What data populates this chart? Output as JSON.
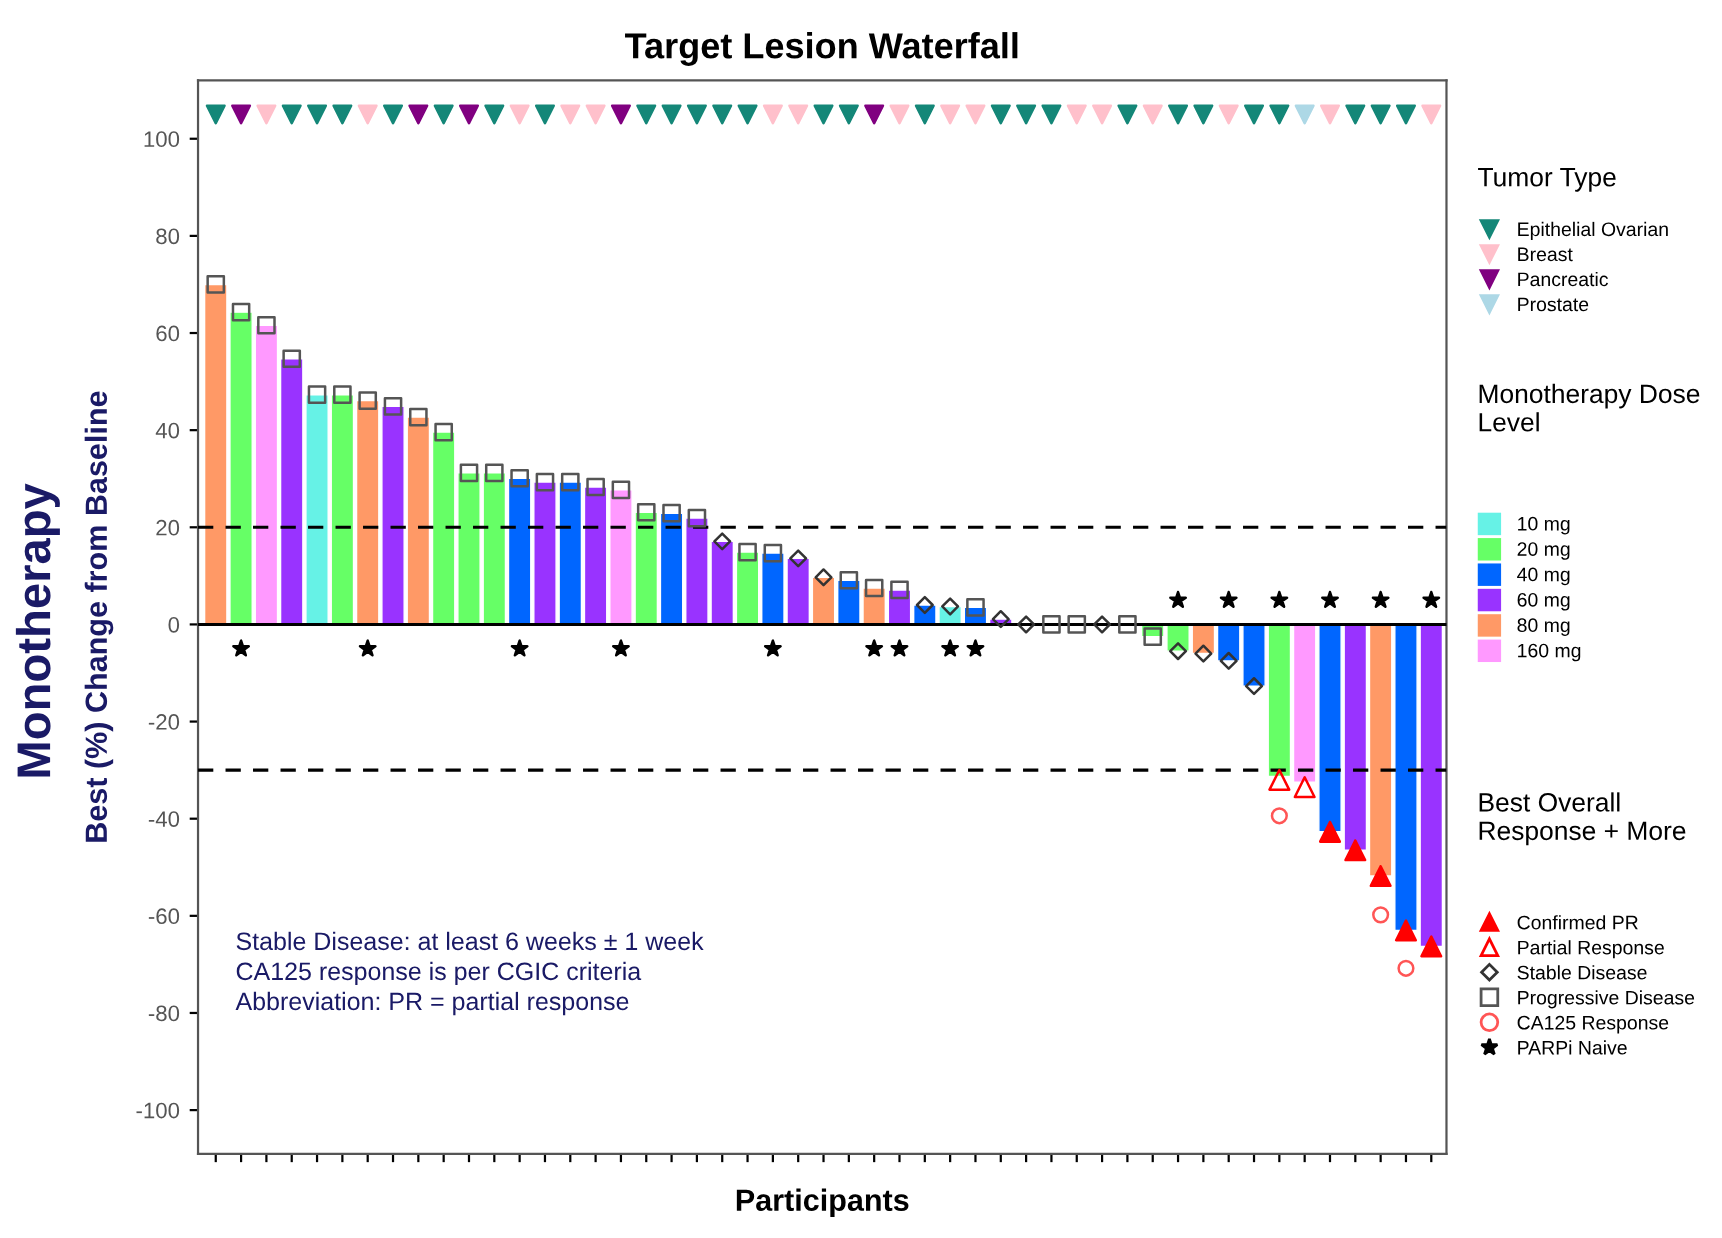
{
  "chart_data": {
    "type": "bar",
    "title": "Target Lesion Waterfall",
    "xlabel": "Participants",
    "ylabel": "Best (%) Change from Baseline",
    "annotations": [
      "Monotherapy",
      "Stable Disease: at least 6 weeks ± 1 week",
      "CA125 response is per CGIC criteria",
      "Abbreviation: PR = partial response"
    ],
    "legend_title": [
      "Tumor Type",
      "Monotherapy Dose Level",
      "Best Overall Response + More"
    ],
    "legend": "right",
    "categories": [
      null,
      null,
      null,
      null,
      null,
      null,
      null,
      null,
      null,
      null,
      null,
      null,
      null,
      null,
      null,
      null,
      null,
      null,
      null,
      null,
      null,
      null,
      null,
      null,
      null,
      null,
      null,
      null,
      null,
      null,
      null,
      null,
      null,
      null,
      null,
      null,
      null,
      null,
      null,
      null,
      null,
      null,
      null,
      null,
      null,
      null,
      null,
      null,
      null
    ],
    "ylim": [
      -109,
      112
    ],
    "yticks": [
      -100,
      -80,
      -60,
      -40,
      -20,
      0,
      20,
      40,
      60,
      80,
      100
    ],
    "grid": false,
    "ref_lines": [
      {
        "axis": "y",
        "value": 20,
        "line_style": "dashed",
        "color": "#000000"
      },
      {
        "axis": "y",
        "value": -30,
        "line_style": "dashed",
        "color": "#000000"
      },
      {
        "axis": "y",
        "value": 0,
        "line_style": "solid",
        "color": "#000000"
      }
    ],
    "series": [
      {
        "name": "Epithelial Ovarian",
        "type": "scatter",
        "marker": "triangle_down",
        "color": "#148778",
        "values": [
          105,
          null,
          null,
          105,
          105,
          105,
          null,
          105,
          null,
          105,
          null,
          105,
          null,
          105,
          null,
          null,
          null,
          105,
          105,
          105,
          105,
          105,
          null,
          null,
          105,
          105,
          null,
          null,
          105,
          null,
          null,
          105,
          105,
          105,
          null,
          null,
          105,
          null,
          105,
          105,
          null,
          105,
          105,
          null,
          null,
          105,
          105,
          105,
          null
        ]
      },
      {
        "name": "Breast",
        "type": "scatter",
        "marker": "triangle_down",
        "color": "#ffc0cb",
        "values": [
          null,
          null,
          105,
          null,
          null,
          null,
          105,
          null,
          null,
          null,
          null,
          null,
          105,
          null,
          105,
          105,
          null,
          null,
          null,
          null,
          null,
          null,
          105,
          105,
          null,
          null,
          null,
          105,
          null,
          105,
          105,
          null,
          null,
          null,
          105,
          105,
          null,
          105,
          null,
          null,
          105,
          null,
          null,
          null,
          105,
          null,
          null,
          null,
          105
        ]
      },
      {
        "name": "Pancreatic",
        "type": "scatter",
        "marker": "triangle_down",
        "color": "#800080",
        "values": [
          null,
          105,
          null,
          null,
          null,
          null,
          null,
          null,
          105,
          null,
          105,
          null,
          null,
          null,
          null,
          null,
          105,
          null,
          null,
          null,
          null,
          null,
          null,
          null,
          null,
          null,
          105,
          null,
          null,
          null,
          null,
          null,
          null,
          null,
          null,
          null,
          null,
          null,
          null,
          null,
          null,
          null,
          null,
          null,
          null,
          null,
          null,
          null,
          null
        ]
      },
      {
        "name": "Prostate",
        "type": "scatter",
        "marker": "triangle_down",
        "color": "#add8e6",
        "values": [
          null,
          null,
          null,
          null,
          null,
          null,
          null,
          null,
          null,
          null,
          null,
          null,
          null,
          null,
          null,
          null,
          null,
          null,
          null,
          null,
          null,
          null,
          null,
          null,
          null,
          null,
          null,
          null,
          null,
          null,
          null,
          null,
          null,
          null,
          null,
          null,
          null,
          null,
          null,
          null,
          null,
          null,
          null,
          105,
          null,
          null,
          null,
          null,
          null
        ]
      },
      {
        "name": "10 mg",
        "color": "#66f2e6",
        "values": [
          null,
          null,
          null,
          null,
          47.3,
          null,
          null,
          null,
          null,
          null,
          null,
          null,
          null,
          null,
          null,
          null,
          null,
          null,
          null,
          null,
          null,
          null,
          null,
          null,
          null,
          null,
          null,
          null,
          null,
          3.7,
          null,
          null,
          null,
          null,
          null,
          null,
          null,
          null,
          null,
          null,
          null,
          null,
          null,
          null,
          null,
          null,
          null,
          null,
          null
        ]
      },
      {
        "name": "20 mg",
        "color": "#66ff66",
        "values": [
          null,
          64.3,
          null,
          null,
          null,
          47.3,
          null,
          null,
          null,
          39.6,
          31.2,
          31.2,
          null,
          null,
          null,
          null,
          null,
          23.1,
          null,
          null,
          null,
          14.9,
          null,
          null,
          null,
          null,
          null,
          null,
          null,
          null,
          null,
          null,
          null,
          null,
          null,
          null,
          null,
          -2.5,
          -5.5,
          null,
          null,
          null,
          -31.3,
          null,
          null,
          null,
          null,
          null,
          null
        ]
      },
      {
        "name": "40 mg",
        "color": "#0066ff",
        "values": [
          null,
          null,
          null,
          null,
          null,
          null,
          null,
          null,
          null,
          null,
          null,
          null,
          30.1,
          null,
          29.3,
          null,
          null,
          null,
          22.9,
          null,
          null,
          null,
          14.7,
          null,
          null,
          9.1,
          null,
          null,
          4,
          null,
          3.5,
          null,
          null,
          null,
          null,
          null,
          null,
          null,
          null,
          null,
          -7.5,
          -12.7,
          null,
          null,
          -42.7,
          null,
          null,
          -63,
          null
        ]
      },
      {
        "name": "60 mg",
        "color": "#9933ff",
        "values": [
          null,
          null,
          null,
          54.7,
          null,
          null,
          null,
          44.9,
          null,
          null,
          null,
          null,
          null,
          29.3,
          null,
          28.3,
          null,
          null,
          null,
          21.9,
          17.1,
          null,
          null,
          13.6,
          null,
          null,
          null,
          7.1,
          null,
          null,
          null,
          1.1,
          null,
          null,
          null,
          null,
          null,
          null,
          null,
          null,
          null,
          null,
          null,
          null,
          null,
          -46.5,
          null,
          null,
          -66.3
        ]
      },
      {
        "name": "80 mg",
        "color": "#ff9966",
        "values": [
          70,
          null,
          null,
          null,
          null,
          null,
          46.1,
          null,
          42.7,
          null,
          null,
          null,
          null,
          null,
          null,
          null,
          null,
          null,
          null,
          null,
          null,
          null,
          null,
          null,
          9.7,
          null,
          7.5,
          null,
          null,
          null,
          null,
          null,
          null,
          null,
          null,
          null,
          null,
          null,
          null,
          -6,
          null,
          null,
          null,
          null,
          null,
          null,
          -51.8,
          null,
          null
        ]
      },
      {
        "name": "160 mg",
        "color": "#ff99ff",
        "values": [
          null,
          null,
          61.6,
          null,
          null,
          null,
          null,
          null,
          null,
          null,
          null,
          null,
          null,
          null,
          null,
          null,
          27.7,
          null,
          null,
          null,
          null,
          null,
          null,
          null,
          null,
          null,
          null,
          null,
          null,
          null,
          null,
          null,
          null,
          null,
          null,
          null,
          null,
          null,
          null,
          null,
          null,
          null,
          null,
          -32.5,
          null,
          null,
          null,
          null,
          null
        ]
      },
      {
        "name": "Confirmed PR",
        "type": "scatter",
        "marker": "triangle",
        "color": "#ff0000",
        "values": [
          null,
          null,
          null,
          null,
          null,
          null,
          null,
          null,
          null,
          null,
          null,
          null,
          null,
          null,
          null,
          null,
          null,
          null,
          null,
          null,
          null,
          null,
          null,
          null,
          null,
          null,
          null,
          null,
          null,
          null,
          null,
          null,
          null,
          null,
          null,
          null,
          null,
          null,
          null,
          null,
          null,
          null,
          null,
          null,
          -42.7,
          -46.5,
          -51.8,
          -63,
          -66.3
        ]
      },
      {
        "name": "Partial Response",
        "type": "scatter",
        "marker": "triangle",
        "color": "#ff0000",
        "values": [
          null,
          null,
          null,
          null,
          null,
          null,
          null,
          null,
          null,
          null,
          null,
          null,
          null,
          null,
          null,
          null,
          null,
          null,
          null,
          null,
          null,
          null,
          null,
          null,
          null,
          null,
          null,
          null,
          null,
          null,
          null,
          null,
          null,
          null,
          null,
          null,
          null,
          null,
          null,
          null,
          null,
          null,
          -32,
          -33.5,
          null,
          null,
          null,
          null,
          null
        ]
      },
      {
        "name": "Stable Disease",
        "type": "scatter",
        "marker": "diamond",
        "color": "#333333",
        "values": [
          null,
          null,
          null,
          null,
          null,
          null,
          null,
          null,
          null,
          null,
          null,
          null,
          null,
          null,
          null,
          null,
          null,
          null,
          null,
          null,
          17.1,
          null,
          null,
          13.6,
          9.7,
          null,
          null,
          null,
          4,
          3.7,
          null,
          1.1,
          0,
          null,
          null,
          0,
          null,
          null,
          -5.5,
          -6,
          -7.5,
          -12.7,
          null,
          null,
          null,
          null,
          null,
          null,
          null
        ]
      },
      {
        "name": "Progressive Disease",
        "type": "scatter",
        "marker": "square",
        "color": "#555555",
        "values": [
          70,
          64.3,
          61.6,
          54.7,
          47.3,
          47.3,
          46.1,
          44.9,
          42.7,
          39.6,
          31.2,
          31.2,
          30.1,
          29.3,
          29.3,
          28.3,
          27.7,
          23.1,
          22.9,
          21.9,
          null,
          14.9,
          14.7,
          null,
          null,
          9.1,
          7.5,
          7.1,
          null,
          null,
          3.5,
          null,
          null,
          0,
          0,
          null,
          0,
          -2.5,
          null,
          null,
          null,
          null,
          null,
          null,
          null,
          null,
          null,
          null,
          null
        ]
      },
      {
        "name": "CA125 Response",
        "type": "scatter",
        "marker": "circle",
        "color": "#ff5555",
        "values": [
          null,
          null,
          null,
          null,
          null,
          null,
          null,
          null,
          null,
          null,
          null,
          null,
          null,
          null,
          null,
          null,
          null,
          null,
          null,
          null,
          null,
          null,
          null,
          null,
          null,
          null,
          null,
          null,
          null,
          null,
          null,
          null,
          null,
          null,
          null,
          null,
          null,
          null,
          null,
          null,
          null,
          null,
          -39.4,
          null,
          null,
          null,
          -59.8,
          -70.8,
          null
        ]
      },
      {
        "name": "PARPi Naive",
        "type": "scatter",
        "marker": "star",
        "color": "#000000",
        "values": [
          null,
          -5,
          null,
          null,
          null,
          null,
          -5,
          null,
          null,
          null,
          null,
          null,
          -5,
          null,
          null,
          null,
          -5,
          null,
          null,
          null,
          null,
          null,
          -5,
          null,
          null,
          null,
          -5,
          -5,
          null,
          -5,
          -5,
          null,
          null,
          null,
          null,
          null,
          null,
          null,
          5,
          null,
          5,
          null,
          5,
          null,
          5,
          null,
          5,
          null,
          5
        ]
      }
    ]
  }
}
